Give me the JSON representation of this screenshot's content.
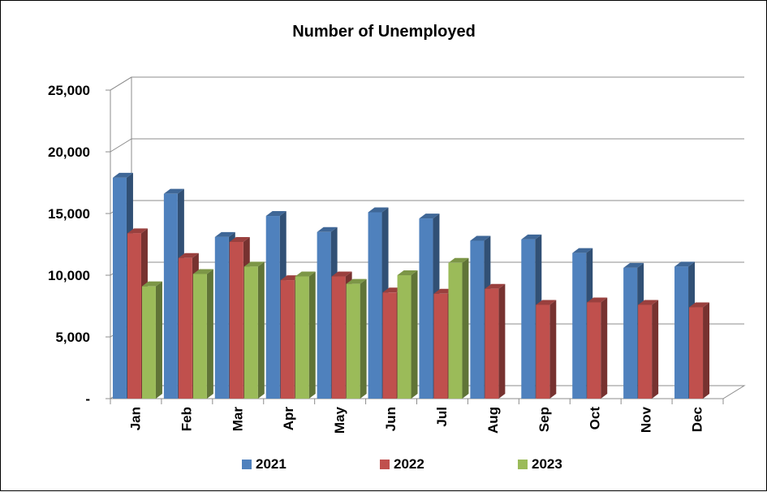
{
  "chart_data": {
    "type": "bar",
    "title": "Number of Unemployed",
    "xlabel": "",
    "ylabel": "",
    "categories": [
      "Jan",
      "Feb",
      "Mar",
      "Apr",
      "May",
      "Jun",
      "Jul",
      "Aug",
      "Sep",
      "Oct",
      "Nov",
      "Dec"
    ],
    "series": [
      {
        "name": "2021",
        "color": "#4f81bd",
        "values": [
          17900,
          16600,
          13100,
          14800,
          13500,
          15100,
          14600,
          12800,
          12900,
          11800,
          10600,
          10700
        ]
      },
      {
        "name": "2022",
        "color": "#c0504d",
        "values": [
          13400,
          11400,
          12700,
          9600,
          9900,
          8600,
          8500,
          8900,
          7600,
          7800,
          7600,
          7400
        ]
      },
      {
        "name": "2023",
        "color": "#9bbb59",
        "values": [
          9100,
          10100,
          10700,
          9900,
          9300,
          10000,
          11000,
          null,
          null,
          null,
          null,
          null
        ]
      }
    ],
    "y_tick_labels": [
      "-",
      "5,000",
      "10,000",
      "15,000",
      "20,000",
      "25,000"
    ],
    "ylim": [
      0,
      25000
    ],
    "grid": true,
    "legend_position": "bottom",
    "style": "3d-clustered-column"
  }
}
